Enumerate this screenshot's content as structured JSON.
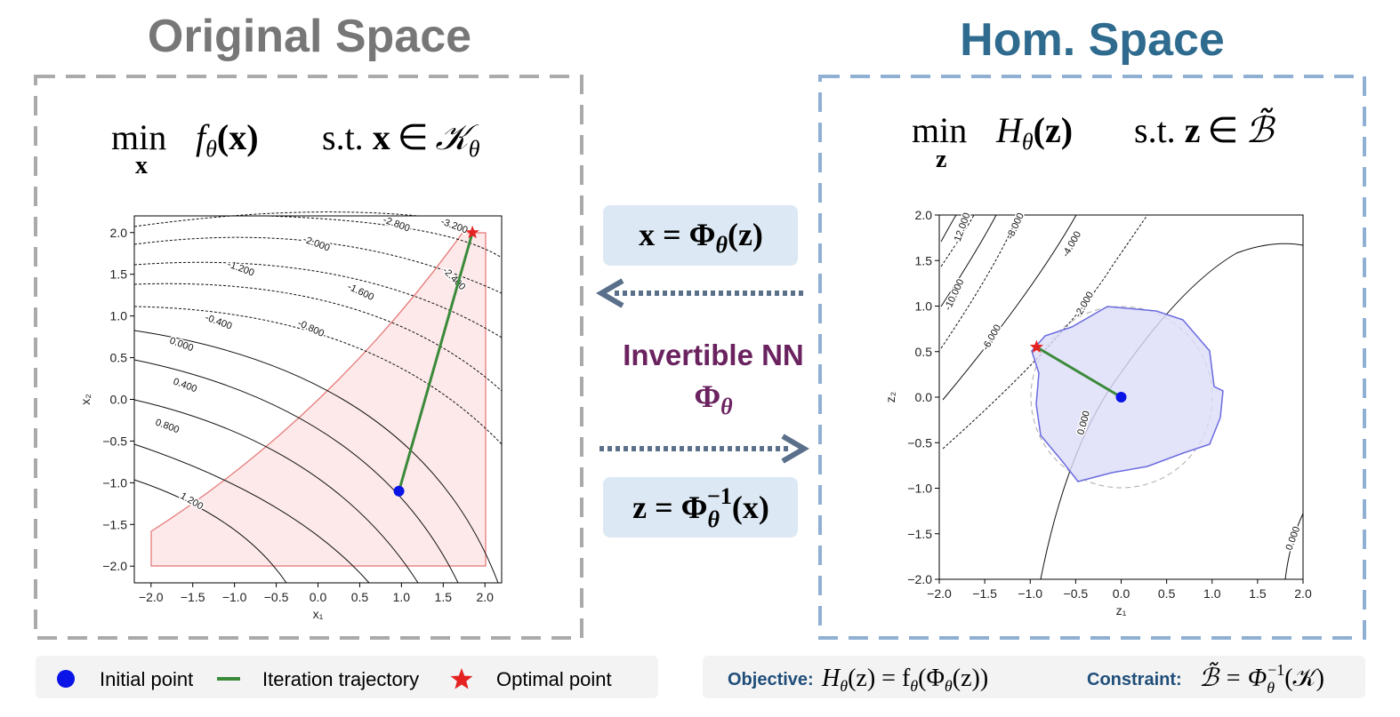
{
  "left_panel": {
    "title": "Original Space",
    "formula": {
      "min": "min",
      "var": "x",
      "objective": [
        "f",
        "θ",
        "(x)"
      ],
      "constraint": [
        "s.t.",
        "x",
        "∈",
        "𝒦",
        "θ"
      ]
    },
    "plot": {
      "xlim": [
        -2.2,
        2.2
      ],
      "ylim": [
        -2.2,
        2.2
      ],
      "xticks": [
        {
          "value": -2,
          "label": "−2.0"
        },
        {
          "value": -1.5,
          "label": "−1.5"
        },
        {
          "value": -1,
          "label": "−1.0"
        },
        {
          "value": -0.5,
          "label": "−0.5"
        },
        {
          "value": 0,
          "label": "0.0"
        },
        {
          "value": 0.5,
          "label": "0.5"
        },
        {
          "value": 1,
          "label": "1.0"
        },
        {
          "value": 1.5,
          "label": "1.5"
        },
        {
          "value": 2,
          "label": "2.0"
        }
      ],
      "yticks": [
        {
          "value": -2,
          "label": "−2.0"
        },
        {
          "value": -1.5,
          "label": "−1.5"
        },
        {
          "value": -1,
          "label": "−1.0"
        },
        {
          "value": -0.5,
          "label": "−0.5"
        },
        {
          "value": 0,
          "label": "0.0"
        },
        {
          "value": 0.5,
          "label": "0.5"
        },
        {
          "value": 1,
          "label": "1.0"
        },
        {
          "value": 1.5,
          "label": "1.5"
        },
        {
          "value": 2,
          "label": "2.0"
        }
      ],
      "xlabel": "x₁",
      "ylabel": "x₂",
      "contour_labels": [
        "-2.800",
        "-3.200",
        "-2.000",
        "-2.400",
        "-1.200",
        "-1.600",
        "-0.400",
        "-0.800",
        "0.000",
        "0.400",
        "0.800",
        "1.200"
      ],
      "initial_point": {
        "x": 0.97,
        "y": -1.1
      },
      "optimal_point": {
        "x": 1.85,
        "y": 2.0
      }
    }
  },
  "middle": {
    "forward": [
      "x = Φ",
      "θ",
      "(z)"
    ],
    "label": "Invertible NN",
    "symbol": [
      "Φ",
      "θ"
    ],
    "inverse": [
      "z = Φ",
      "θ",
      "−1",
      "(x)"
    ]
  },
  "right_panel": {
    "title": "Hom. Space",
    "formula": {
      "min": "min",
      "var": "z",
      "objective": [
        "H",
        "θ",
        "(z)"
      ],
      "constraint": [
        "s.t.",
        "z",
        "∈",
        "ℬ̃"
      ]
    },
    "plot": {
      "xlim": [
        -2,
        2
      ],
      "ylim": [
        -2,
        2
      ],
      "xticks": [
        {
          "value": -2,
          "label": "−2.0"
        },
        {
          "value": -1.5,
          "label": "−1.5"
        },
        {
          "value": -1,
          "label": "−1.0"
        },
        {
          "value": -0.5,
          "label": "−0.5"
        },
        {
          "value": 0,
          "label": "0.0"
        },
        {
          "value": 0.5,
          "label": "0.5"
        },
        {
          "value": 1,
          "label": "1.0"
        },
        {
          "value": 1.5,
          "label": "1.5"
        },
        {
          "value": 2,
          "label": "2.0"
        }
      ],
      "yticks": [
        {
          "value": -2,
          "label": "−2.0"
        },
        {
          "value": -1.5,
          "label": "−1.5"
        },
        {
          "value": -1,
          "label": "−1.0"
        },
        {
          "value": -0.5,
          "label": "−0.5"
        },
        {
          "value": 0,
          "label": "0.0"
        },
        {
          "value": 0.5,
          "label": "0.5"
        },
        {
          "value": 1,
          "label": "1.0"
        },
        {
          "value": 1.5,
          "label": "1.5"
        },
        {
          "value": 2,
          "label": "2.0"
        }
      ],
      "xlabel": "z₁",
      "ylabel": "z₂",
      "contour_labels": [
        "-12.000",
        "-10.000",
        "-8.000",
        "-6.000",
        "-4.000",
        "-2.000",
        "0.000",
        "0.000"
      ],
      "initial_point": {
        "x": 0,
        "y": 0
      },
      "optimal_point": {
        "x": -0.93,
        "y": 0.55
      }
    }
  },
  "legend": {
    "items": [
      "Initial point",
      "Iteration trajectory",
      "Optimal point"
    ]
  },
  "definitions": {
    "objective_label": "Objective:",
    "objective": [
      "H",
      "θ",
      "(z) = f",
      "θ",
      "(Φ",
      "θ",
      "(z))"
    ],
    "constraint_label": "Constraint:",
    "constraint": [
      "ℬ̃ = Φ",
      "θ",
      "−1",
      "(𝒦)"
    ]
  }
}
